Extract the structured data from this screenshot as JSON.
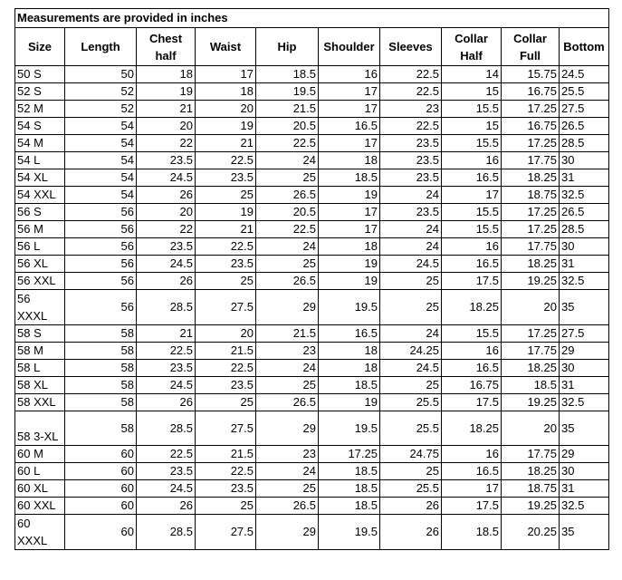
{
  "title": "Measurements are provided in inches",
  "headers": [
    "Size",
    "Length",
    "Chest half",
    "Waist",
    "Hip",
    "Shoulder",
    "Sleeves",
    "Collar Half",
    "Collar Full",
    "Bottom"
  ],
  "rows": [
    [
      "50 S",
      "50",
      "18",
      "17",
      "18.5",
      "16",
      "22.5",
      "14",
      "15.75",
      "24.5"
    ],
    [
      "52 S",
      "52",
      "19",
      "18",
      "19.5",
      "17",
      "22.5",
      "15",
      "16.75",
      "25.5"
    ],
    [
      "52 M",
      "52",
      "21",
      "20",
      "21.5",
      "17",
      "23",
      "15.5",
      "17.25",
      "27.5"
    ],
    [
      "54 S",
      "54",
      "20",
      "19",
      "20.5",
      "16.5",
      "22.5",
      "15",
      "16.75",
      "26.5"
    ],
    [
      "54 M",
      "54",
      "22",
      "21",
      "22.5",
      "17",
      "23.5",
      "15.5",
      "17.25",
      "28.5"
    ],
    [
      "54 L",
      "54",
      "23.5",
      "22.5",
      "24",
      "18",
      "23.5",
      "16",
      "17.75",
      "30"
    ],
    [
      "54 XL",
      "54",
      "24.5",
      "23.5",
      "25",
      "18.5",
      "23.5",
      "16.5",
      "18.25",
      "31"
    ],
    [
      "54 XXL",
      "54",
      "26",
      "25",
      "26.5",
      "19",
      "24",
      "17",
      "18.75",
      "32.5"
    ],
    [
      "56 S",
      "56",
      "20",
      "19",
      "20.5",
      "17",
      "23.5",
      "15.5",
      "17.25",
      "26.5"
    ],
    [
      "56 M",
      "56",
      "22",
      "21",
      "22.5",
      "17",
      "24",
      "15.5",
      "17.25",
      "28.5"
    ],
    [
      "56 L",
      "56",
      "23.5",
      "22.5",
      "24",
      "18",
      "24",
      "16",
      "17.75",
      "30"
    ],
    [
      "56 XL",
      "56",
      "24.5",
      "23.5",
      "25",
      "19",
      "24.5",
      "16.5",
      "18.25",
      "31"
    ],
    [
      "56 XXL",
      "56",
      "26",
      "25",
      "26.5",
      "19",
      "25",
      "17.5",
      "19.25",
      "32.5"
    ],
    [
      "56 XXXL",
      "56",
      "28.5",
      "27.5",
      "29",
      "19.5",
      "25",
      "18.25",
      "20",
      "35"
    ],
    [
      "58 S",
      "58",
      "21",
      "20",
      "21.5",
      "16.5",
      "24",
      "15.5",
      "17.25",
      "27.5"
    ],
    [
      "58 M",
      "58",
      "22.5",
      "21.5",
      "23",
      "18",
      "24.25",
      "16",
      "17.75",
      "29"
    ],
    [
      "58 L",
      "58",
      "23.5",
      "22.5",
      "24",
      "18",
      "24.5",
      "16.5",
      "18.25",
      "30"
    ],
    [
      "58 XL",
      "58",
      "24.5",
      "23.5",
      "25",
      "18.5",
      "25",
      "16.75",
      "18.5",
      "31"
    ],
    [
      "58 XXL",
      "58",
      "26",
      "25",
      "26.5",
      "19",
      "25.5",
      "17.5",
      "19.25",
      "32.5"
    ],
    [
      "58 3-XL",
      "58",
      "28.5",
      "27.5",
      "29",
      "19.5",
      "25.5",
      "18.25",
      "20",
      "35"
    ],
    [
      "60 M",
      "60",
      "22.5",
      "21.5",
      "23",
      "17.25",
      "24.75",
      "16",
      "17.75",
      "29"
    ],
    [
      "60 L",
      "60",
      "23.5",
      "22.5",
      "24",
      "18.5",
      "25",
      "16.5",
      "18.25",
      "30"
    ],
    [
      "60 XL",
      "60",
      "24.5",
      "23.5",
      "25",
      "18.5",
      "25.5",
      "17",
      "18.75",
      "31"
    ],
    [
      "60 XXL",
      "60",
      "26",
      "25",
      "26.5",
      "18.5",
      "26",
      "17.5",
      "19.25",
      "32.5"
    ],
    [
      "60 XXXL",
      "60",
      "28.5",
      "27.5",
      "29",
      "19.5",
      "26",
      "18.5",
      "20.25",
      "35"
    ]
  ]
}
